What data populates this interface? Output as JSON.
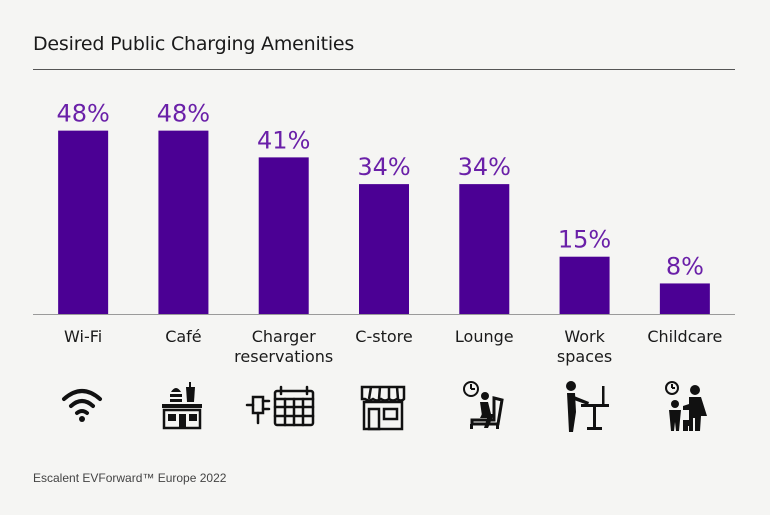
{
  "title": "Desired Public Charging Amenities",
  "source": "Escalent EVForward™ Europe 2022",
  "colors": {
    "bar": "#4b0094",
    "value_label": "#6a20a8",
    "axis": "#9a9a9a",
    "text": "#1a1a1a"
  },
  "chart_data": {
    "type": "bar",
    "title": "Desired Public Charging Amenities",
    "categories": [
      [
        "Wi-Fi"
      ],
      [
        "Café"
      ],
      [
        "Charger",
        "reservations"
      ],
      [
        "C-store"
      ],
      [
        "Lounge"
      ],
      [
        "Work",
        "spaces"
      ],
      [
        "Childcare"
      ]
    ],
    "values": [
      48,
      48,
      41,
      34,
      34,
      15,
      8
    ],
    "value_labels": [
      "48%",
      "48%",
      "41%",
      "34%",
      "34%",
      "15%",
      "8%"
    ],
    "xlabel": "",
    "ylabel": "",
    "ylim": [
      0,
      50
    ],
    "grid": false
  },
  "icons": [
    "wifi-icon",
    "cafe-icon",
    "charger-reservations-icon",
    "store-icon",
    "lounge-icon",
    "work-spaces-icon",
    "childcare-icon"
  ]
}
